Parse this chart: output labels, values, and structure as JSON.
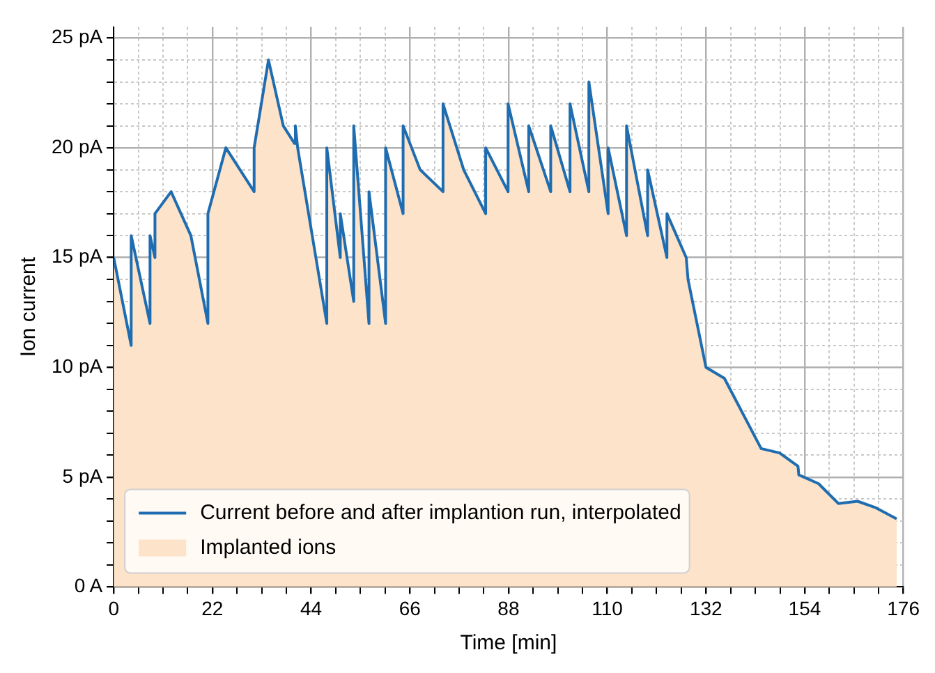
{
  "chart_data": {
    "type": "line",
    "xlabel": "Time [min]",
    "ylabel": "Ion current",
    "x": [
      0,
      3.9,
      3.9,
      8.1,
      8.1,
      9.2,
      9.2,
      12.8,
      17.2,
      21,
      21,
      25,
      31.3,
      31.3,
      34.5,
      37.8,
      40.3,
      40.5,
      41,
      47.5,
      47.5,
      50.5,
      50.5,
      53.5,
      53.5,
      56.9,
      56.9,
      60.6,
      60.6,
      64.5,
      64.5,
      68.3,
      73.4,
      73.4,
      78,
      82.9,
      82.9,
      87.9,
      87.9,
      92.5,
      92.5,
      97.4,
      97.4,
      101.7,
      101.7,
      105.9,
      105.9,
      110.2,
      110.2,
      114.3,
      114.3,
      119,
      119,
      123.3,
      123.3,
      127.6,
      128,
      132,
      136.1,
      144.3,
      148.4,
      152.5,
      152.7,
      157.1,
      161.5,
      165.8,
      169.9,
      174.5
    ],
    "series": [
      {
        "name": "Current before and after implantion run, interpolated",
        "type": "line",
        "color": "#1f6db0",
        "values": [
          15,
          11,
          16,
          12,
          16,
          15,
          17,
          18,
          16,
          12,
          17,
          20,
          18,
          20,
          24,
          21,
          20.2,
          21,
          20,
          12,
          20,
          15,
          17,
          13,
          21,
          12,
          18,
          12,
          20,
          17,
          21,
          19,
          18,
          22,
          19,
          17,
          20,
          18,
          22,
          18,
          21,
          18,
          21,
          18,
          22,
          18,
          23,
          17,
          20,
          16,
          21,
          16,
          19,
          15,
          17,
          15,
          14,
          10,
          9.5,
          6.3,
          6.1,
          5.5,
          5.1,
          4.7,
          3.8,
          3.9,
          3.6,
          3.1
        ]
      },
      {
        "name": "Implanted ions",
        "type": "area",
        "color": "#fde3c9",
        "values": [
          15,
          11,
          16,
          12,
          16,
          15,
          17,
          18,
          16,
          12,
          17,
          20,
          18,
          20,
          24,
          21,
          20.2,
          21,
          20,
          12,
          20,
          15,
          17,
          13,
          21,
          12,
          18,
          12,
          20,
          17,
          21,
          19,
          18,
          22,
          19,
          17,
          20,
          18,
          22,
          18,
          21,
          18,
          21,
          18,
          22,
          18,
          23,
          17,
          20,
          16,
          21,
          16,
          19,
          15,
          17,
          15,
          14,
          10,
          9.5,
          6.3,
          6.1,
          5.5,
          5.1,
          4.7,
          3.8,
          3.9,
          3.6,
          3.1
        ]
      }
    ],
    "xlim": [
      0,
      176
    ],
    "xticks": [
      0,
      {
        "value": 5.5,
        "label": null
      },
      {
        "value": 11,
        "label": null
      },
      {
        "value": 16.5,
        "label": null
      },
      22,
      {
        "value": 27.5,
        "label": null
      },
      {
        "value": 33,
        "label": null
      },
      {
        "value": 38.5,
        "label": null
      },
      44,
      {
        "value": 49.5,
        "label": null
      },
      {
        "value": 55,
        "label": null
      },
      {
        "value": 60.5,
        "label": null
      },
      66,
      {
        "value": 71.5,
        "label": null
      },
      {
        "value": 77,
        "label": null
      },
      {
        "value": 82.5,
        "label": null
      },
      88,
      {
        "value": 93.5,
        "label": null
      },
      {
        "value": 99,
        "label": null
      },
      {
        "value": 104.5,
        "label": null
      },
      110,
      {
        "value": 115.5,
        "label": null
      },
      {
        "value": 121,
        "label": null
      },
      {
        "value": 126.5,
        "label": null
      },
      132,
      {
        "value": 137.5,
        "label": null
      },
      {
        "value": 143,
        "label": null
      },
      {
        "value": 148.5,
        "label": null
      },
      154,
      {
        "value": 159.5,
        "label": null
      },
      {
        "value": 165,
        "label": null
      },
      {
        "value": 170.5,
        "label": null
      },
      176
    ],
    "ylim": [
      0,
      25.5
    ],
    "yticks": [
      {
        "value": 0,
        "label": "0 A"
      },
      {
        "value": 1,
        "label": null
      },
      {
        "value": 2,
        "label": null
      },
      {
        "value": 3,
        "label": null
      },
      {
        "value": 4,
        "label": null
      },
      {
        "value": 5,
        "label": "5 pA"
      },
      {
        "value": 6,
        "label": null
      },
      {
        "value": 7,
        "label": null
      },
      {
        "value": 8,
        "label": null
      },
      {
        "value": 9,
        "label": null
      },
      {
        "value": 10,
        "label": "10 pA"
      },
      {
        "value": 11,
        "label": null
      },
      {
        "value": 12,
        "label": null
      },
      {
        "value": 13,
        "label": null
      },
      {
        "value": 14,
        "label": null
      },
      {
        "value": 15,
        "label": "15 pA"
      },
      {
        "value": 16,
        "label": null
      },
      {
        "value": 17,
        "label": null
      },
      {
        "value": 18,
        "label": null
      },
      {
        "value": 19,
        "label": null
      },
      {
        "value": 20,
        "label": "20 pA"
      },
      {
        "value": 21,
        "label": null
      },
      {
        "value": 22,
        "label": null
      },
      {
        "value": 23,
        "label": null
      },
      {
        "value": 24,
        "label": null
      },
      {
        "value": 25,
        "label": "25 pA"
      }
    ],
    "grid": true,
    "legend": "bottom left",
    "marker": "none",
    "line_style": "solid"
  }
}
